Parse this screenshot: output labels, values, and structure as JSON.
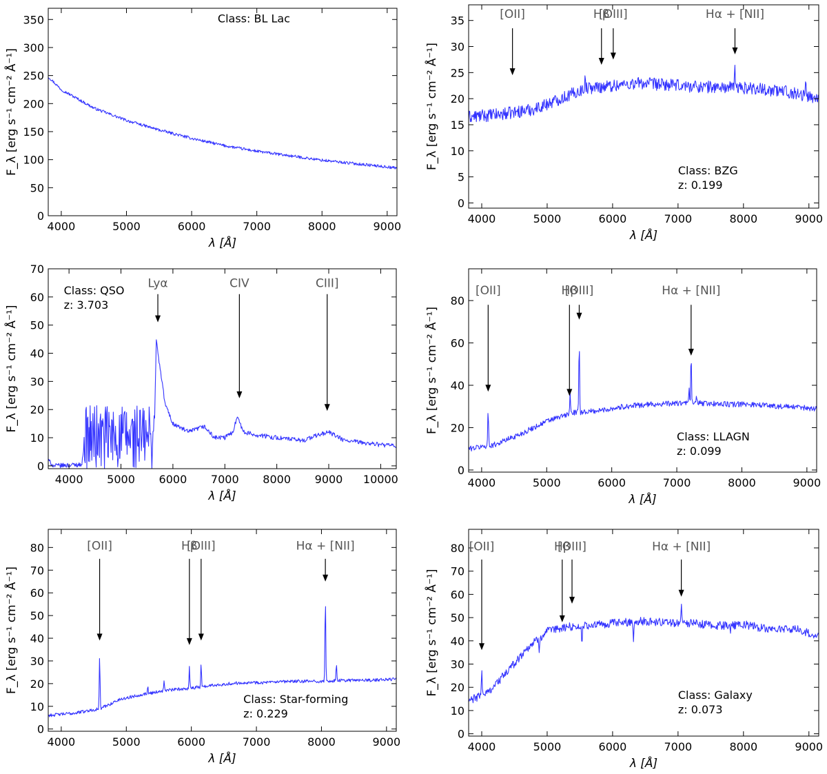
{
  "colors": {
    "spectrum": "#3333ff",
    "annotation_text": "#555555",
    "axes": "#000000"
  },
  "chart_data": [
    {
      "type": "line",
      "xlabel": "λ [Å]",
      "ylabel": "F_λ [erg s⁻¹ cm⁻² Å⁻¹]",
      "xlim": [
        3800,
        9150
      ],
      "ylim": [
        0,
        370
      ],
      "xticks": [
        4000,
        5000,
        6000,
        7000,
        8000,
        9000
      ],
      "yticks": [
        0,
        50,
        100,
        150,
        200,
        250,
        300,
        350
      ],
      "class_lines": [
        "Class: BL Lac"
      ],
      "class_anchor": [
        6400,
        345
      ],
      "series": [
        {
          "x": [
            3800,
            4000,
            4500,
            5000,
            5500,
            6000,
            6500,
            7000,
            7500,
            8000,
            8500,
            9000,
            9150
          ],
          "values": [
            248,
            225,
            192,
            170,
            153,
            138,
            125,
            115,
            107,
            99,
            93,
            87,
            85
          ],
          "noise": 2.5
        }
      ],
      "annotations": []
    },
    {
      "type": "line",
      "xlabel": "λ [Å]",
      "ylabel": "F_λ [erg s⁻¹ cm⁻² Å⁻¹]",
      "xlim": [
        3800,
        9150
      ],
      "ylim": [
        -1,
        38
      ],
      "xticks": [
        4000,
        5000,
        6000,
        7000,
        8000,
        9000
      ],
      "yticks": [
        0,
        5,
        10,
        15,
        20,
        25,
        30,
        35
      ],
      "class_lines": [
        "Class: BZG",
        "z: 0.199"
      ],
      "class_anchor": [
        7000,
        5.5
      ],
      "series": [
        {
          "x": [
            3800,
            4300,
            4800,
            5200,
            5600,
            6000,
            6400,
            7000,
            7600,
            8200,
            8800,
            9150
          ],
          "values": [
            16.5,
            17,
            18,
            20,
            22,
            22.5,
            23,
            22.5,
            22.2,
            22,
            21,
            20
          ],
          "noise": 1.2,
          "spikes": [
            [
              5580,
              3.5
            ],
            [
              7870,
              4.3
            ],
            [
              8650,
              2.5
            ],
            [
              8950,
              2.5
            ]
          ]
        }
      ],
      "annotations": [
        {
          "label": "[OII]",
          "x": 4470,
          "label_y": 35.5,
          "y_from": 33.5,
          "y_to": 24.5
        },
        {
          "label": "Hβ",
          "x": 5830,
          "label_y": 35.5,
          "y_from": 33.5,
          "y_to": 26.5
        },
        {
          "label": "[OIII]",
          "x": 6010,
          "label_y": 35.5,
          "y_from": 33.5,
          "y_to": 27.5
        },
        {
          "label": "Hα + [NII]",
          "x": 7870,
          "label_y": 35.5,
          "y_from": 33.5,
          "y_to": 28.5
        }
      ]
    },
    {
      "type": "line",
      "xlabel": "λ [Å]",
      "ylabel": "F_λ [erg s⁻¹ cm⁻² Å⁻¹]",
      "xlim": [
        3600,
        10300
      ],
      "ylim": [
        -1,
        70
      ],
      "xticks": [
        4000,
        5000,
        6000,
        7000,
        8000,
        9000,
        10000
      ],
      "yticks": [
        0,
        10,
        20,
        30,
        40,
        50,
        60,
        70
      ],
      "class_lines": [
        "Class: QSO",
        "z: 3.703"
      ],
      "class_anchor": [
        3900,
        61
      ],
      "series": [
        {
          "x": [
            3600,
            3700,
            4250,
            4300,
            5640,
            5680,
            5710,
            5750,
            5850,
            6000,
            6300,
            6600,
            6800,
            7000,
            7150,
            7250,
            7350,
            7600,
            8000,
            8500,
            8800,
            9000,
            9300,
            10000,
            10300
          ],
          "values": [
            2,
            0,
            0.5,
            10,
            10,
            45,
            40,
            35,
            22,
            15,
            12,
            14,
            10,
            10,
            12,
            18,
            12,
            11,
            10,
            9,
            11,
            12,
            9,
            7.5,
            7
          ],
          "noise": 0.8,
          "forest": [
            4280,
            5640,
            12
          ]
        }
      ],
      "annotations": [
        {
          "label": "Lyα",
          "x": 5710,
          "label_y": 63.5,
          "y_from": 61,
          "y_to": 51
        },
        {
          "label": "CIV",
          "x": 7280,
          "label_y": 63.5,
          "y_from": 61,
          "y_to": 24
        },
        {
          "label": "CIII]",
          "x": 8970,
          "label_y": 63.5,
          "y_from": 61,
          "y_to": 19.5
        }
      ]
    },
    {
      "type": "line",
      "xlabel": "λ [Å]",
      "ylabel": "F_λ [erg s⁻¹ cm⁻² Å⁻¹]",
      "xlim": [
        3800,
        9150
      ],
      "ylim": [
        -1,
        95
      ],
      "xticks": [
        4000,
        5000,
        6000,
        7000,
        8000,
        9000
      ],
      "yticks": [
        0,
        20,
        40,
        60,
        80
      ],
      "class_lines": [
        "Class: LLAGN",
        "z: 0.099"
      ],
      "class_anchor": [
        7000,
        14
      ],
      "series": [
        {
          "x": [
            3800,
            4200,
            4600,
            5000,
            5400,
            5800,
            6200,
            6600,
            7000,
            7400,
            7800,
            8200,
            8600,
            9150
          ],
          "values": [
            10,
            12,
            17,
            23,
            27,
            28,
            30,
            31,
            31.5,
            31.5,
            31,
            31,
            30,
            29
          ],
          "noise": 1.3,
          "spikes": [
            [
              4100,
              17
            ],
            [
              5360,
              10
            ],
            [
              5500,
              35
            ],
            [
              7220,
              22
            ],
            [
              7190,
              8
            ],
            [
              7300,
              4
            ]
          ]
        }
      ],
      "annotations": [
        {
          "label": "[OII]",
          "x": 4100,
          "label_y": 83,
          "y_from": 78,
          "y_to": 37
        },
        {
          "label": "Hβ",
          "x": 5350,
          "label_y": 83,
          "y_from": 78,
          "y_to": 35
        },
        {
          "label": "[OIII]",
          "x": 5500,
          "label_y": 83,
          "y_from": 78,
          "y_to": 71
        },
        {
          "label": "Hα + [NII]",
          "x": 7220,
          "label_y": 83,
          "y_from": 78,
          "y_to": 54
        }
      ]
    },
    {
      "type": "line",
      "xlabel": "λ [Å]",
      "ylabel": "F_λ [erg s⁻¹ cm⁻² Å⁻¹]",
      "xlim": [
        3800,
        9150
      ],
      "ylim": [
        -1,
        88
      ],
      "xticks": [
        4000,
        5000,
        6000,
        7000,
        8000,
        9000
      ],
      "yticks": [
        0,
        10,
        20,
        30,
        40,
        50,
        60,
        70,
        80
      ],
      "class_lines": [
        "Class: Star-forming",
        "z: 0.229"
      ],
      "class_anchor": [
        6800,
        11.5
      ],
      "series": [
        {
          "x": [
            3800,
            4200,
            4600,
            4900,
            5200,
            5600,
            6000,
            6400,
            6800,
            7200,
            7600,
            8000,
            8400,
            8800,
            9150
          ],
          "values": [
            6,
            7,
            9,
            13,
            15,
            17,
            18,
            19.5,
            20.5,
            20.5,
            21,
            21,
            21.5,
            21.5,
            22
          ],
          "noise": 0.7,
          "spikes": [
            [
              4590,
              23
            ],
            [
              5330,
              3
            ],
            [
              5580,
              4
            ],
            [
              5970,
              10
            ],
            [
              6150,
              11
            ],
            [
              8060,
              37
            ],
            [
              8230,
              7
            ]
          ]
        }
      ],
      "annotations": [
        {
          "label": "[OII]",
          "x": 4590,
          "label_y": 79,
          "y_from": 75,
          "y_to": 39
        },
        {
          "label": "Hβ",
          "x": 5970,
          "label_y": 79,
          "y_from": 75,
          "y_to": 37
        },
        {
          "label": "[OIII]",
          "x": 6150,
          "label_y": 79,
          "y_from": 75,
          "y_to": 39
        },
        {
          "label": "Hα + [NII]",
          "x": 8060,
          "label_y": 79,
          "y_from": 75,
          "y_to": 65
        }
      ]
    },
    {
      "type": "line",
      "xlabel": "λ [Å]",
      "ylabel": "F_λ [erg s⁻¹ cm⁻² Å⁻¹]",
      "xlim": [
        3800,
        9150
      ],
      "ylim": [
        -1,
        88
      ],
      "xticks": [
        4000,
        5000,
        6000,
        7000,
        8000,
        9000
      ],
      "yticks": [
        0,
        10,
        20,
        30,
        40,
        50,
        60,
        70,
        80
      ],
      "class_lines": [
        "Class: Galaxy",
        "z: 0.073"
      ],
      "class_anchor": [
        7000,
        15
      ],
      "series": [
        {
          "x": [
            3800,
            4100,
            4400,
            4700,
            5000,
            5300,
            5600,
            6000,
            6400,
            6800,
            7200,
            7600,
            8000,
            8400,
            8800,
            9150
          ],
          "values": [
            14,
            18,
            27,
            37,
            44,
            46,
            46.5,
            47.5,
            48.5,
            48,
            47.5,
            46.5,
            47,
            45,
            45,
            42
          ],
          "noise": 1.8,
          "spikes": [
            [
              4000,
              12
            ],
            [
              7050,
              10
            ],
            [
              5530,
              -9
            ],
            [
              6320,
              -8
            ],
            [
              4880,
              -5
            ],
            [
              5900,
              -3
            ],
            [
              7800,
              -3
            ]
          ]
        }
      ],
      "annotations": [
        {
          "label": "[OII]",
          "x": 4000,
          "label_y": 79,
          "y_from": 75,
          "y_to": 36
        },
        {
          "label": "Hβ",
          "x": 5230,
          "label_y": 79,
          "y_from": 75,
          "y_to": 48
        },
        {
          "label": "[OIII]",
          "x": 5380,
          "label_y": 79,
          "y_from": 75,
          "y_to": 56
        },
        {
          "label": "Hα + [NII]",
          "x": 7050,
          "label_y": 79,
          "y_from": 75,
          "y_to": 59
        }
      ]
    }
  ]
}
